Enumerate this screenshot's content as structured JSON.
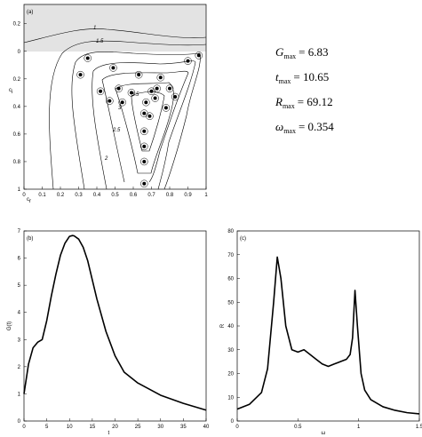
{
  "chart_data": [
    {
      "type": "scatter",
      "panel_label": "(a)",
      "xlabel": {
        "text": "c",
        "sub": "r"
      },
      "ylabel": {
        "text": "c",
        "sub": "i"
      },
      "xlim": [
        0,
        1
      ],
      "ylim": [
        -1,
        0.34
      ],
      "xticks": [
        0,
        0.1,
        0.2,
        0.3,
        0.4,
        0.5,
        0.6,
        0.7,
        0.8,
        0.9,
        1
      ],
      "yticks": [
        0.2,
        0,
        {
          "value": -0.2,
          "label": "0.2"
        },
        {
          "value": -0.4,
          "label": "0.4"
        },
        {
          "value": -0.6,
          "label": "0.6"
        },
        {
          "value": -0.8,
          "label": "0.8"
        },
        {
          "value": -1,
          "label": "1"
        }
      ],
      "contour_levels": [
        1,
        1.5,
        2,
        2.5,
        3,
        3.5
      ],
      "color": "#000000",
      "x": [
        0.35,
        0.49,
        0.31,
        0.42,
        0.47,
        0.52,
        0.63,
        0.75,
        0.9,
        0.96,
        0.7,
        0.73,
        0.72,
        0.67,
        0.66,
        0.69,
        0.66,
        0.66,
        0.66,
        0.66,
        0.8,
        0.83,
        0.78,
        0.59,
        0.54
      ],
      "y": [
        -0.05,
        -0.12,
        -0.17,
        -0.29,
        -0.36,
        -0.27,
        -0.17,
        -0.19,
        -0.07,
        -0.03,
        -0.29,
        -0.27,
        -0.34,
        -0.37,
        -0.45,
        -0.47,
        -0.58,
        -0.69,
        -0.8,
        -0.96,
        -0.27,
        -0.33,
        -0.41,
        -0.3,
        -0.37
      ]
    },
    {
      "type": "line",
      "panel_label": "(b)",
      "xlabel": {
        "text": "t"
      },
      "ylabel": {
        "text": "G(t)"
      },
      "xlim": [
        0,
        40
      ],
      "ylim": [
        0,
        7
      ],
      "xticks": [
        0,
        5,
        10,
        15,
        20,
        25,
        30,
        35,
        40
      ],
      "yticks": [
        0,
        1,
        2,
        3,
        4,
        5,
        6,
        7
      ],
      "color": "#000000",
      "x": [
        0,
        1,
        2,
        3,
        4,
        5,
        6,
        7,
        8,
        9,
        10,
        10.65,
        11,
        12,
        13,
        14,
        15,
        16,
        18,
        20,
        22,
        25,
        30,
        35,
        40
      ],
      "values": [
        1.0,
        2.1,
        2.7,
        2.9,
        3.0,
        3.7,
        4.6,
        5.4,
        6.1,
        6.55,
        6.8,
        6.83,
        6.82,
        6.7,
        6.4,
        5.9,
        5.2,
        4.5,
        3.3,
        2.4,
        1.8,
        1.4,
        0.95,
        0.65,
        0.4
      ]
    },
    {
      "type": "line",
      "panel_label": "(c)",
      "xlabel": {
        "text": "ω"
      },
      "ylabel": {
        "text": "R"
      },
      "xlim": [
        0,
        1.5
      ],
      "ylim": [
        0,
        80
      ],
      "xticks": [
        0,
        0.5,
        1,
        1.5
      ],
      "yticks": [
        0,
        10,
        20,
        30,
        40,
        50,
        60,
        70,
        80
      ],
      "color": "#000000",
      "x": [
        0,
        0.1,
        0.2,
        0.25,
        0.3,
        0.33,
        0.36,
        0.4,
        0.45,
        0.5,
        0.55,
        0.6,
        0.65,
        0.7,
        0.75,
        0.8,
        0.85,
        0.9,
        0.93,
        0.95,
        0.97,
        0.99,
        1.02,
        1.05,
        1.1,
        1.2,
        1.3,
        1.4,
        1.5
      ],
      "values": [
        5,
        7,
        12,
        22,
        50,
        69,
        60,
        40,
        30,
        29,
        30,
        28,
        26,
        24,
        23,
        24,
        25,
        26,
        28,
        35,
        55,
        40,
        20,
        13,
        9,
        6,
        4.5,
        3.5,
        3
      ]
    }
  ],
  "stats": [
    {
      "symbol": "G",
      "sub": "max",
      "text": "= 6.83"
    },
    {
      "symbol": "t",
      "sub": "max",
      "text": "= 10.65"
    },
    {
      "symbol": "R",
      "sub": "max",
      "text": "= 69.12"
    },
    {
      "symbol": "ω",
      "sub": "max",
      "text": "= 0.354"
    }
  ]
}
